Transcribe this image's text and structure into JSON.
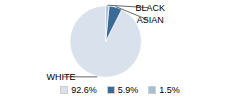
{
  "chart_data": {
    "type": "pie",
    "categories": [
      "WHITE",
      "ASIAN",
      "BLACK"
    ],
    "values": [
      92.6,
      5.9,
      1.5
    ],
    "value_labels": [
      "92.6%",
      "5.9%",
      "1.5%"
    ],
    "colors": [
      "#d9e2ec",
      "#3a6b96",
      "#a8bfd4"
    ],
    "legend": "bottom"
  }
}
